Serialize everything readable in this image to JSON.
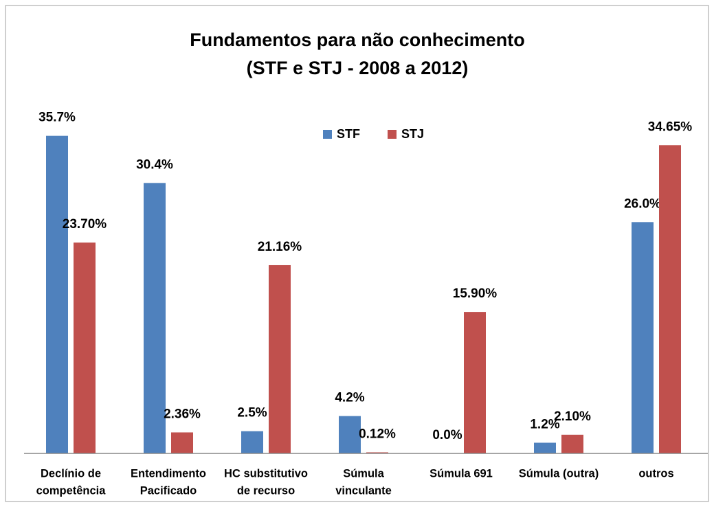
{
  "chart_data": {
    "type": "bar",
    "title": [
      "Fundamentos para não conhecimento",
      "(STF e STJ - 2008 a 2012)"
    ],
    "categories": [
      [
        "Declínio de",
        "competência"
      ],
      [
        "Entendimento",
        "Pacificado"
      ],
      [
        "HC substitutivo",
        "de recurso"
      ],
      [
        "Súmula",
        "vinculante"
      ],
      [
        "Súmula 691"
      ],
      [
        "Súmula (outra)"
      ],
      [
        "outros"
      ]
    ],
    "series": [
      {
        "name": "STF",
        "color": "#4f81bd",
        "values": [
          35.7,
          30.4,
          2.5,
          4.2,
          0.0,
          1.2,
          26.0
        ],
        "value_labels": [
          "35.7%",
          "30.4%",
          "2.5%",
          "4.2%",
          "0.0%",
          "1.2%",
          "26.0%"
        ]
      },
      {
        "name": "STJ",
        "color": "#c0504d",
        "values": [
          23.7,
          2.36,
          21.16,
          0.12,
          15.9,
          2.1,
          34.65
        ],
        "value_labels": [
          "23.70%",
          "2.36%",
          "21.16%",
          "0.12%",
          "15.90%",
          "2.10%",
          "34.65%"
        ]
      }
    ],
    "ylim": [
      0,
      40
    ],
    "legend": "top"
  }
}
